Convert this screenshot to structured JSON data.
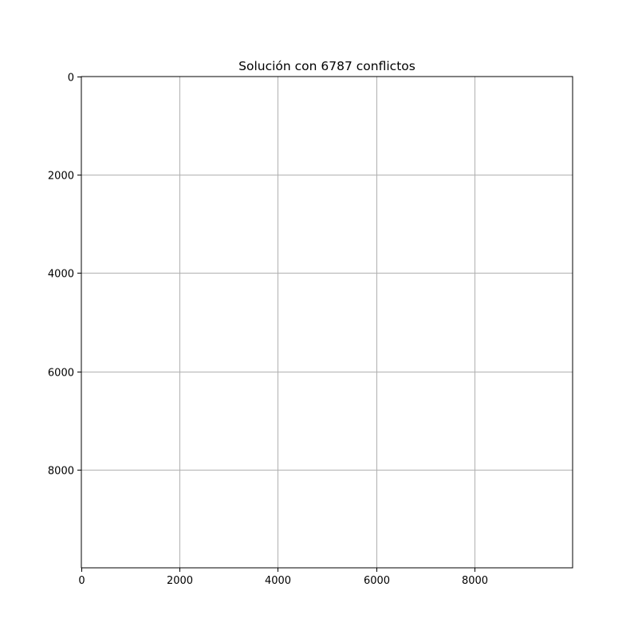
{
  "chart_data": {
    "type": "scatter",
    "title": "Solución con 6787 conflictos",
    "xlabel": "",
    "ylabel": "",
    "xlim": [
      0,
      10000
    ],
    "ylim": [
      10000,
      0
    ],
    "y_inverted": true,
    "grid": true,
    "xticks": [
      0,
      2000,
      4000,
      6000,
      8000
    ],
    "yticks": [
      0,
      2000,
      4000,
      6000,
      8000
    ],
    "xtick_labels": [
      "0",
      "2000",
      "4000",
      "6000",
      "8000"
    ],
    "ytick_labels": [
      "0",
      "2000",
      "4000",
      "6000",
      "8000"
    ],
    "series": [],
    "colors": {
      "grid": "#b0b0b0",
      "frame": "#000000",
      "background": "#ffffff"
    }
  }
}
